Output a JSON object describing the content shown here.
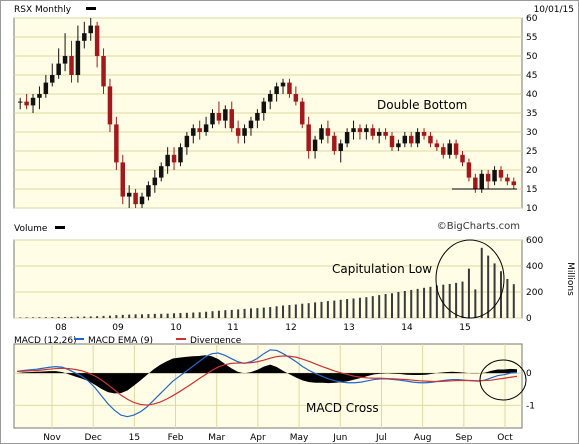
{
  "header": {
    "symbol_label": "RSX Monthly",
    "date": "10/01/15",
    "legend_color": "#000000"
  },
  "watermark": "©BigCharts.com",
  "colors": {
    "plot_bg": "#fffde5",
    "grid": "#e0d7a0",
    "up": "#111111",
    "down": "#a3191b",
    "vol": "#3a3a3a",
    "macd": "#2266cc",
    "ema": "#cc3333",
    "divergence": "#000000"
  },
  "chart_data": [
    {
      "type": "candlestick",
      "title": "RSX Monthly",
      "date": "10/01/15",
      "ylim": [
        10,
        60
      ],
      "y_ticks": [
        10,
        15,
        20,
        25,
        30,
        35,
        40,
        45,
        50,
        55,
        60
      ],
      "support_line": 15,
      "annotation": "Double Bottom",
      "grid": true,
      "candles": [
        [
          38,
          39,
          36,
          38
        ],
        [
          38,
          40,
          36,
          37
        ],
        [
          37,
          40,
          35,
          39
        ],
        [
          39,
          42,
          36,
          40
        ],
        [
          40,
          45,
          39,
          43
        ],
        [
          43,
          48,
          42,
          45
        ],
        [
          45,
          52,
          44,
          48
        ],
        [
          48,
          56,
          46,
          50
        ],
        [
          50,
          54,
          43,
          45
        ],
        [
          45,
          58,
          43,
          54
        ],
        [
          54,
          59,
          52,
          56
        ],
        [
          56,
          60,
          54,
          58
        ],
        [
          58,
          59,
          47,
          50
        ],
        [
          50,
          52,
          40,
          42
        ],
        [
          42,
          44,
          30,
          32
        ],
        [
          32,
          34,
          20,
          22
        ],
        [
          22,
          24,
          11,
          13
        ],
        [
          13,
          16,
          10,
          14
        ],
        [
          14,
          15,
          10,
          11
        ],
        [
          11,
          14,
          10,
          13
        ],
        [
          13,
          17,
          12,
          16
        ],
        [
          16,
          20,
          14,
          18
        ],
        [
          18,
          22,
          17,
          21
        ],
        [
          21,
          26,
          19,
          24
        ],
        [
          24,
          26,
          20,
          22
        ],
        [
          22,
          27,
          21,
          26
        ],
        [
          26,
          30,
          24,
          29
        ],
        [
          29,
          32,
          27,
          31
        ],
        [
          31,
          33,
          28,
          30
        ],
        [
          30,
          34,
          29,
          32
        ],
        [
          32,
          36,
          31,
          35
        ],
        [
          35,
          38,
          32,
          33
        ],
        [
          33,
          37,
          31,
          36
        ],
        [
          36,
          38,
          30,
          31
        ],
        [
          31,
          33,
          27,
          29
        ],
        [
          29,
          32,
          27,
          31
        ],
        [
          31,
          34,
          29,
          33
        ],
        [
          33,
          36,
          31,
          35
        ],
        [
          35,
          39,
          33,
          38
        ],
        [
          38,
          41,
          36,
          40
        ],
        [
          40,
          43,
          38,
          42
        ],
        [
          42,
          44,
          40,
          43
        ],
        [
          43,
          44,
          39,
          40
        ],
        [
          40,
          42,
          37,
          38
        ],
        [
          38,
          39,
          31,
          32
        ],
        [
          32,
          34,
          23,
          25
        ],
        [
          25,
          29,
          23,
          28
        ],
        [
          28,
          32,
          27,
          31
        ],
        [
          31,
          33,
          27,
          29
        ],
        [
          29,
          30,
          24,
          25
        ],
        [
          25,
          28,
          22,
          27
        ],
        [
          27,
          31,
          26,
          30
        ],
        [
          30,
          33,
          28,
          31
        ],
        [
          31,
          32,
          28,
          30
        ],
        [
          30,
          32,
          28,
          31
        ],
        [
          31,
          32,
          28,
          29
        ],
        [
          29,
          31,
          27,
          30
        ],
        [
          30,
          31,
          28,
          29
        ],
        [
          29,
          30,
          25,
          26
        ],
        [
          26,
          28,
          25,
          27
        ],
        [
          27,
          30,
          26,
          29
        ],
        [
          29,
          30,
          26,
          27
        ],
        [
          27,
          31,
          26,
          30
        ],
        [
          30,
          31,
          28,
          29
        ],
        [
          29,
          30,
          26,
          27
        ],
        [
          27,
          28,
          25,
          26
        ],
        [
          26,
          27,
          23,
          24
        ],
        [
          24,
          28,
          23,
          27
        ],
        [
          27,
          28,
          23,
          24
        ],
        [
          24,
          25,
          21,
          22
        ],
        [
          22,
          23,
          17,
          18
        ],
        [
          18,
          19,
          14,
          15
        ],
        [
          15,
          20,
          14,
          19
        ],
        [
          19,
          20,
          15,
          17
        ],
        [
          17,
          21,
          16,
          20
        ],
        [
          20,
          21,
          17,
          18
        ],
        [
          18,
          19,
          16,
          17
        ],
        [
          17,
          18,
          15,
          16
        ]
      ]
    },
    {
      "type": "bar",
      "title": "Volume",
      "ylabel": "Millions",
      "ylim": [
        0,
        600
      ],
      "y_ticks": [
        0,
        200,
        400,
        600
      ],
      "annotation": "Capitulation Low",
      "values": [
        4,
        5,
        5,
        6,
        6,
        7,
        8,
        8,
        9,
        10,
        11,
        12,
        14,
        16,
        18,
        22,
        24,
        26,
        28,
        28,
        30,
        32,
        32,
        34,
        36,
        38,
        40,
        42,
        44,
        48,
        52,
        56,
        60,
        62,
        66,
        70,
        74,
        76,
        80,
        84,
        90,
        96,
        100,
        104,
        110,
        114,
        120,
        124,
        130,
        134,
        140,
        146,
        150,
        156,
        160,
        168,
        176,
        184,
        190,
        200,
        208,
        216,
        224,
        232,
        240,
        250,
        256,
        262,
        270,
        280,
        380,
        220,
        540,
        480,
        420,
        360,
        300,
        260
      ]
    },
    {
      "type": "line",
      "title": "MACD (12,26)",
      "series_labels": [
        "MACD EMA (9)",
        "Divergence"
      ],
      "ylim": [
        -1.7,
        0.9
      ],
      "y_ticks": [
        0,
        -1
      ],
      "annotation": "MACD Cross",
      "x_tick_labels": [
        "Nov",
        "Dec",
        "15",
        "Feb",
        "Mar",
        "Apr",
        "May",
        "Jun",
        "Jul",
        "Aug",
        "Sep",
        "Oct"
      ],
      "macd": [
        0.05,
        0.08,
        0.1,
        0.12,
        0.15,
        0.18,
        0.2,
        0.18,
        0.1,
        0.0,
        -0.1,
        -0.25,
        -0.45,
        -0.7,
        -0.95,
        -1.15,
        -1.3,
        -1.35,
        -1.3,
        -1.2,
        -1.05,
        -0.85,
        -0.65,
        -0.45,
        -0.25,
        -0.1,
        0.05,
        0.2,
        0.35,
        0.5,
        0.6,
        0.62,
        0.55,
        0.45,
        0.35,
        0.3,
        0.35,
        0.45,
        0.6,
        0.72,
        0.7,
        0.6,
        0.48,
        0.35,
        0.2,
        0.08,
        -0.02,
        -0.1,
        -0.18,
        -0.24,
        -0.28,
        -0.3,
        -0.3,
        -0.28,
        -0.24,
        -0.2,
        -0.18,
        -0.18,
        -0.2,
        -0.22,
        -0.25,
        -0.28,
        -0.3,
        -0.3,
        -0.28,
        -0.25,
        -0.22,
        -0.2,
        -0.2,
        -0.22,
        -0.24,
        -0.25,
        -0.22,
        -0.15,
        -0.08,
        -0.05,
        0.0,
        0.02
      ],
      "signal": [
        0.05,
        0.06,
        0.07,
        0.08,
        0.1,
        0.12,
        0.14,
        0.15,
        0.14,
        0.11,
        0.07,
        0.0,
        -0.09,
        -0.21,
        -0.36,
        -0.52,
        -0.68,
        -0.81,
        -0.91,
        -0.97,
        -0.99,
        -0.96,
        -0.9,
        -0.81,
        -0.7,
        -0.58,
        -0.45,
        -0.32,
        -0.18,
        -0.05,
        0.08,
        0.19,
        0.26,
        0.3,
        0.31,
        0.31,
        0.32,
        0.35,
        0.4,
        0.46,
        0.51,
        0.53,
        0.52,
        0.49,
        0.43,
        0.36,
        0.28,
        0.2,
        0.13,
        0.06,
        0.0,
        -0.05,
        -0.1,
        -0.13,
        -0.15,
        -0.16,
        -0.16,
        -0.17,
        -0.18,
        -0.19,
        -0.2,
        -0.22,
        -0.24,
        -0.25,
        -0.26,
        -0.26,
        -0.25,
        -0.24,
        -0.23,
        -0.23,
        -0.23,
        -0.24,
        -0.23,
        -0.22,
        -0.19,
        -0.16,
        -0.13,
        -0.1
      ]
    }
  ]
}
